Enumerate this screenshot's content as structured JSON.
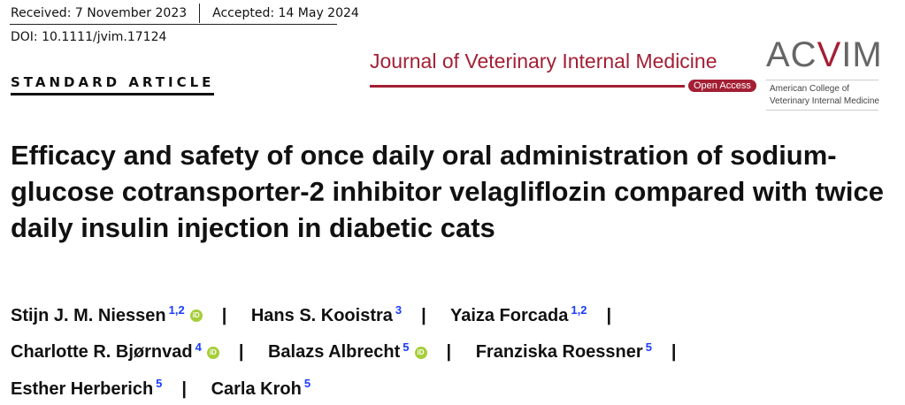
{
  "received": "Received: 7 November 2023",
  "accepted": "Accepted: 14 May 2024",
  "doi": "DOI: 10.1111/jvim.17124",
  "article_type": "STANDARD ARTICLE",
  "journal": {
    "name": "Journal of Veterinary Internal Medicine",
    "open_access": "Open Access",
    "acvim_a": "AC",
    "acvim_v": "V",
    "acvim_b": "IM",
    "acvim_line1": "American College of",
    "acvim_line2": "Veterinary Internal Medicine",
    "brand_color": "#a31f34"
  },
  "title": "Efficacy and safety of once daily oral administration of sodium-glucose cotransporter-2 inhibitor velagliflozin compared with twice daily insulin injection in diabetic cats",
  "orcid_label": "iD",
  "authors": [
    {
      "name": "Stijn J. M. Niessen",
      "aff": "1,2"
    },
    {
      "name": "Hans S. Kooistra",
      "aff": "3"
    },
    {
      "name": "Yaiza Forcada",
      "aff": "1,2"
    },
    {
      "name": "Charlotte R. Bjørnvad",
      "aff": "4"
    },
    {
      "name": "Balazs Albrecht",
      "aff": "5"
    },
    {
      "name": "Franziska Roessner",
      "aff": "5"
    },
    {
      "name": "Esther Herberich",
      "aff": "5"
    },
    {
      "name": "Carla Kroh",
      "aff": "5"
    }
  ]
}
